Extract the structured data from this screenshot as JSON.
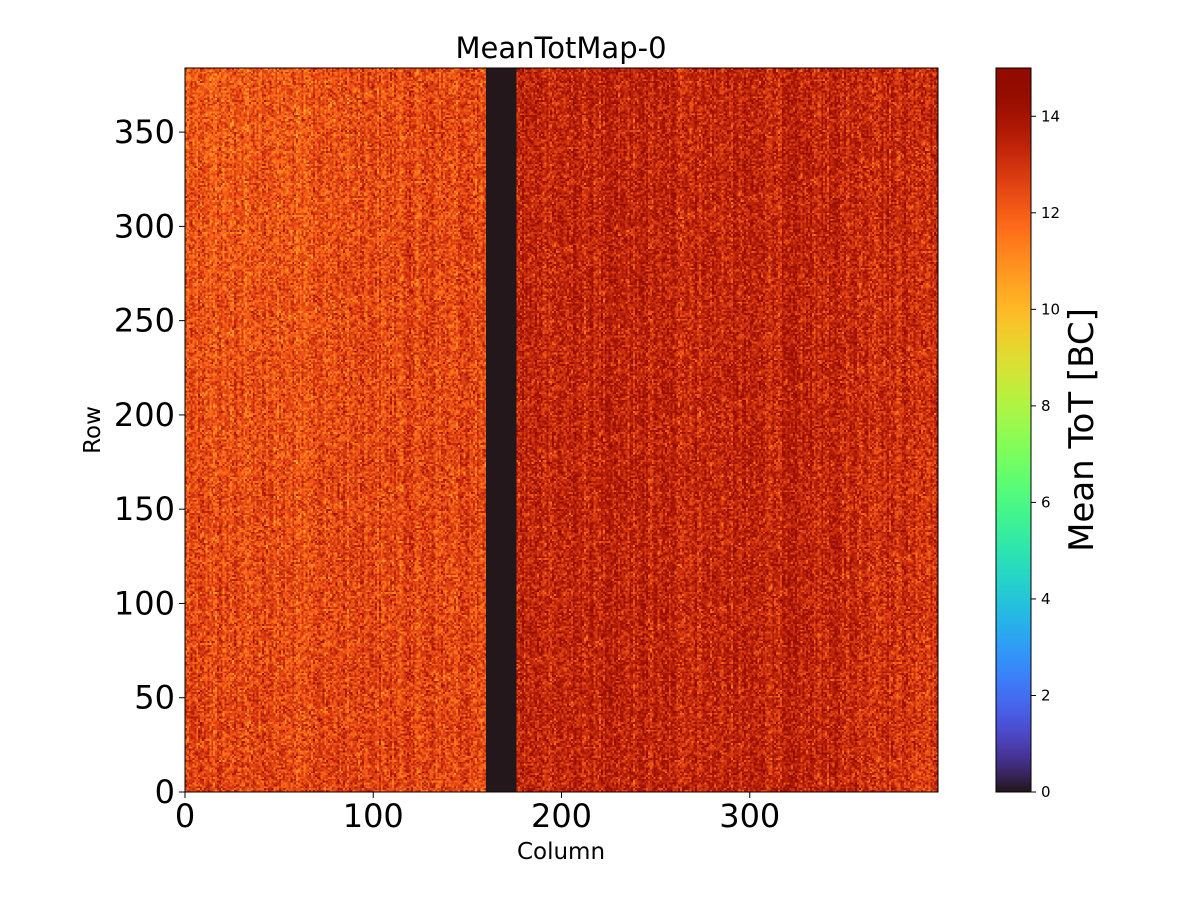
{
  "chart_data": {
    "type": "heatmap",
    "title": "MeanTotMap-0",
    "xlabel": "Column",
    "ylabel": "Row",
    "xlim": [
      0,
      400
    ],
    "ylim": [
      0,
      384
    ],
    "x_ticks": [
      0,
      100,
      200,
      300
    ],
    "y_ticks": [
      0,
      50,
      100,
      150,
      200,
      250,
      300,
      350
    ],
    "colorbar": {
      "label": "Mean ToT [BC]",
      "range": [
        0,
        15
      ],
      "ticks": [
        0,
        2,
        4,
        6,
        8,
        10,
        12,
        14
      ],
      "colormap": "turbo"
    },
    "dead_region": {
      "columns": [
        160,
        176
      ],
      "value": 0
    },
    "typical_value_range": [
      11,
      15
    ],
    "description_values": {
      "left_region_mean": 12.6,
      "right_region_mean": 13.4
    }
  },
  "colors": {
    "background": "#ffffff",
    "axis": "#000000"
  }
}
